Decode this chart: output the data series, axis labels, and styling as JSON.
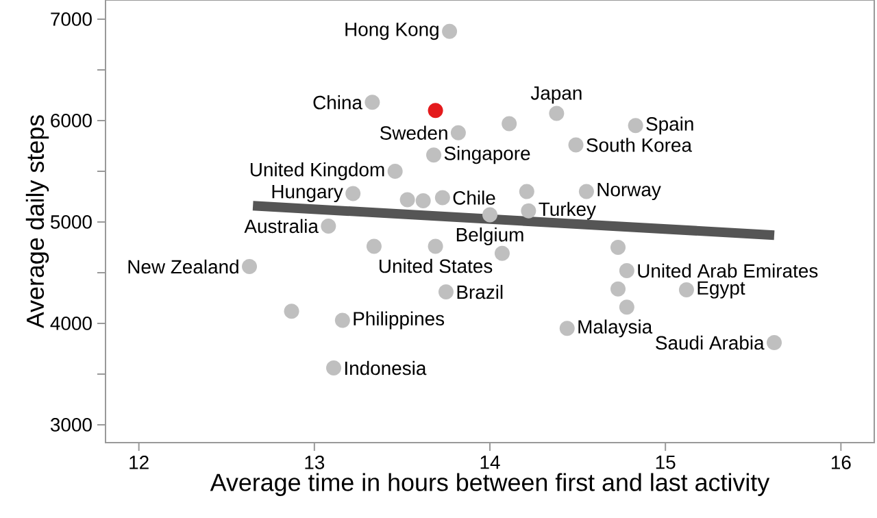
{
  "chart_data": {
    "type": "scatter",
    "xlabel": "Average time in hours between first and last activity",
    "ylabel": "Average daily steps",
    "xlim": [
      11.81,
      16.19
    ],
    "ylim": [
      2824,
      7189
    ],
    "xticks": [
      12,
      13,
      14,
      15,
      16
    ],
    "yticks": [
      3000,
      {
        "value": 3500,
        "label": null
      },
      4000,
      {
        "value": 4500,
        "label": null
      },
      5000,
      {
        "value": 5500,
        "label": null
      },
      6000,
      {
        "value": 6500,
        "label": null
      },
      7000
    ],
    "grid": false,
    "marker": "circle",
    "series": [
      {
        "color": "#bfbfbf",
        "x": [
          13.77,
          13.33,
          13.82,
          14.38,
          14.11,
          14.83,
          14.49,
          13.68,
          13.46,
          13.22,
          13.53,
          13.62,
          13.73,
          14.21,
          14.22,
          14.55,
          14.0,
          13.08,
          13.34,
          13.69,
          14.07,
          14.73,
          12.63,
          14.78,
          14.73,
          15.12,
          14.78,
          13.75,
          12.87,
          13.16,
          14.44,
          15.62,
          13.11
        ],
        "values": [
          6880,
          6180,
          5880,
          6070,
          5970,
          5950,
          5760,
          5660,
          5500,
          5280,
          5220,
          5210,
          5240,
          5300,
          5110,
          5300,
          5070,
          4960,
          4760,
          4760,
          4690,
          4750,
          4560,
          4520,
          4340,
          4330,
          4160,
          4310,
          4120,
          4030,
          3950,
          3810,
          3560
        ]
      },
      {
        "color": "#e41a1c",
        "x": [
          13.69
        ],
        "values": [
          6100
        ]
      },
      {
        "type": "line",
        "marker": "none",
        "color": "#555555",
        "x": [
          12.65,
          15.62
        ],
        "values": [
          5160,
          4870
        ]
      }
    ],
    "annotations": [
      {
        "text": "Hong Kong",
        "x": 13.77,
        "y": 6880
      },
      {
        "text": "China",
        "x": 13.33,
        "y": 6180
      },
      {
        "text": "Sweden",
        "x": 13.82,
        "y": 5880
      },
      {
        "text": "Japan",
        "x": 14.38,
        "y": 6070
      },
      {
        "text": "Spain",
        "x": 14.83,
        "y": 5950
      },
      {
        "text": "South Korea",
        "x": 14.49,
        "y": 5760
      },
      {
        "text": "Singapore",
        "x": 13.68,
        "y": 5660
      },
      {
        "text": "United Kingdom",
        "x": 13.46,
        "y": 5500
      },
      {
        "text": "Hungary",
        "x": 13.22,
        "y": 5280
      },
      {
        "text": "Chile",
        "x": 13.73,
        "y": 5240
      },
      {
        "text": "Norway",
        "x": 14.55,
        "y": 5300
      },
      {
        "text": "Turkey",
        "x": 14.22,
        "y": 5110
      },
      {
        "text": "Belgium",
        "x": 14.0,
        "y": 5070
      },
      {
        "text": "Australia",
        "x": 13.08,
        "y": 4960
      },
      {
        "text": "United States",
        "x": 13.69,
        "y": 4760
      },
      {
        "text": "New Zealand",
        "x": 12.63,
        "y": 4560
      },
      {
        "text": "United Arab Emirates",
        "x": 14.78,
        "y": 4520
      },
      {
        "text": "Egypt",
        "x": 15.12,
        "y": 4330
      },
      {
        "text": "Brazil",
        "x": 13.75,
        "y": 4310
      },
      {
        "text": "Philippines",
        "x": 13.16,
        "y": 4030
      },
      {
        "text": "Malaysia",
        "x": 14.44,
        "y": 3950
      },
      {
        "text": "Saudi Arabia",
        "x": 15.62,
        "y": 3810
      },
      {
        "text": "Indonesia",
        "x": 13.11,
        "y": 3560
      }
    ]
  }
}
